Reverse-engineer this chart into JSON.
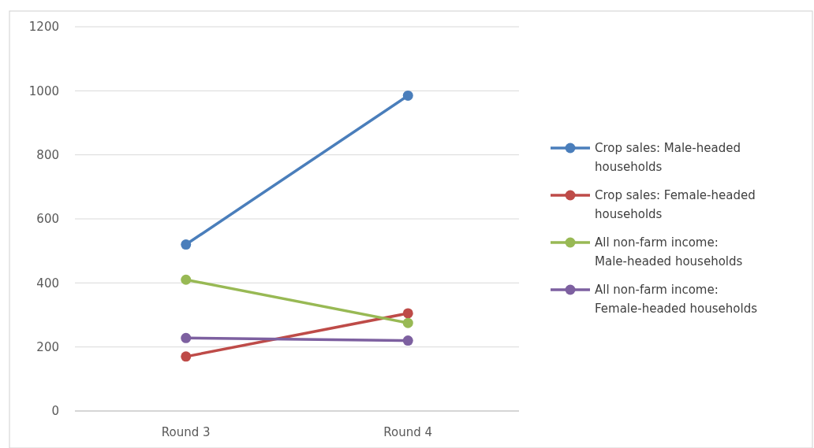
{
  "chart_data": {
    "type": "line",
    "categories": [
      "Round 3",
      "Round 4"
    ],
    "series": [
      {
        "name": "Crop sales: Male-headed households",
        "color": "#4a7ebb",
        "values": [
          520,
          985
        ]
      },
      {
        "name": "Crop sales: Female-headed households",
        "color": "#be4b48",
        "values": [
          170,
          305
        ]
      },
      {
        "name": "All non-farm income: Male-headed households",
        "color": "#98b954",
        "values": [
          410,
          275
        ]
      },
      {
        "name": "All non-farm income: Female-headed households",
        "color": "#7d60a0",
        "values": [
          228,
          220
        ]
      }
    ],
    "ylim": [
      0,
      1200
    ],
    "yticks": [
      0,
      200,
      400,
      600,
      800,
      1000,
      1200
    ],
    "grid": "y",
    "legend": "right",
    "marker": "circle",
    "line_style": "solid"
  }
}
